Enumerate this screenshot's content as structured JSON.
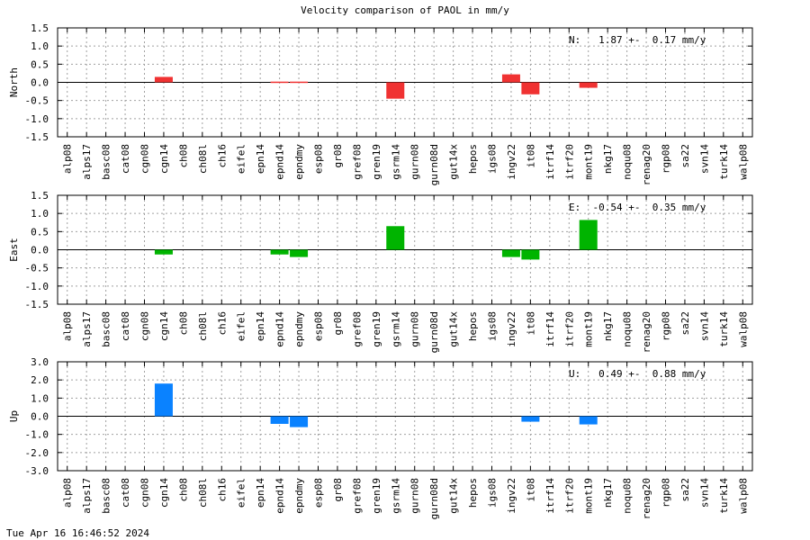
{
  "title": "Velocity comparison of PAOL in mm/y",
  "footer": "Tue Apr 16 16:46:52 2024",
  "chart_data": [
    {
      "type": "bar",
      "ylabel": "North",
      "annotation": "N:   1.87 +-  0.17 mm/y",
      "color": "#f03232",
      "ylim": [
        -1.5,
        1.5
      ],
      "yticks": [
        1.5,
        1.0,
        0.5,
        0.0,
        -0.5,
        -1.0,
        -1.5
      ],
      "ytick_labels": [
        "1.5",
        "1.0",
        "0.5",
        "0.0",
        "-0.5",
        "-1.0",
        "-1.5"
      ],
      "grid": true,
      "categories": [
        "alp08",
        "alps17",
        "basc08",
        "cat08",
        "cgn08",
        "cgn14",
        "ch08",
        "ch08l",
        "ch16",
        "eifel",
        "epn14",
        "epnd14",
        "epndmy",
        "esp08",
        "gr08",
        "gref08",
        "gren19",
        "gsrm14",
        "gurn08",
        "gurn08d",
        "gut14x",
        "hepos",
        "igs08",
        "ingv22",
        "it08",
        "itrf14",
        "itrf20",
        "mont19",
        "nkg17",
        "noqu08",
        "renag20",
        "rgp08",
        "sa22",
        "svn14",
        "turk14",
        "walp08"
      ],
      "values": [
        null,
        null,
        null,
        null,
        null,
        0.15,
        null,
        null,
        null,
        null,
        null,
        0.02,
        0.02,
        null,
        null,
        null,
        null,
        -0.45,
        null,
        null,
        null,
        null,
        null,
        0.22,
        -0.33,
        null,
        null,
        -0.15,
        null,
        null,
        null,
        null,
        null,
        null,
        null,
        null
      ]
    },
    {
      "type": "bar",
      "ylabel": "East",
      "annotation": "E:  -0.54 +-  0.35 mm/y",
      "color": "#00b400",
      "ylim": [
        -1.5,
        1.5
      ],
      "yticks": [
        1.5,
        1.0,
        0.5,
        0.0,
        -0.5,
        -1.0,
        -1.5
      ],
      "ytick_labels": [
        "1.5",
        "1.0",
        "0.5",
        "0.0",
        "-0.5",
        "-1.0",
        "-1.5"
      ],
      "grid": true,
      "categories": [
        "alp08",
        "alps17",
        "basc08",
        "cat08",
        "cgn08",
        "cgn14",
        "ch08",
        "ch08l",
        "ch16",
        "eifel",
        "epn14",
        "epnd14",
        "epndmy",
        "esp08",
        "gr08",
        "gref08",
        "gren19",
        "gsrm14",
        "gurn08",
        "gurn08d",
        "gut14x",
        "hepos",
        "igs08",
        "ingv22",
        "it08",
        "itrf14",
        "itrf20",
        "mont19",
        "nkg17",
        "noqu08",
        "renag20",
        "rgp08",
        "sa22",
        "svn14",
        "turk14",
        "walp08"
      ],
      "values": [
        null,
        null,
        null,
        null,
        null,
        -0.13,
        null,
        null,
        null,
        null,
        null,
        -0.13,
        -0.2,
        null,
        null,
        null,
        null,
        0.65,
        null,
        null,
        null,
        null,
        null,
        -0.2,
        -0.27,
        null,
        null,
        0.82,
        null,
        null,
        null,
        null,
        null,
        null,
        null,
        null
      ]
    },
    {
      "type": "bar",
      "ylabel": "Up",
      "annotation": "U:   0.49 +-  0.88 mm/y",
      "color": "#0a82ff",
      "ylim": [
        -3.0,
        3.0
      ],
      "yticks": [
        3.0,
        2.0,
        1.0,
        0.0,
        -1.0,
        -2.0,
        -3.0
      ],
      "ytick_labels": [
        "3.0",
        "2.0",
        "1.0",
        "0.0",
        "-1.0",
        "-2.0",
        "-3.0"
      ],
      "grid": true,
      "categories": [
        "alp08",
        "alps17",
        "basc08",
        "cat08",
        "cgn08",
        "cgn14",
        "ch08",
        "ch08l",
        "ch16",
        "eifel",
        "epn14",
        "epnd14",
        "epndmy",
        "esp08",
        "gr08",
        "gref08",
        "gren19",
        "gsrm14",
        "gurn08",
        "gurn08d",
        "gut14x",
        "hepos",
        "igs08",
        "ingv22",
        "it08",
        "itrf14",
        "itrf20",
        "mont19",
        "nkg17",
        "noqu08",
        "renag20",
        "rgp08",
        "sa22",
        "svn14",
        "turk14",
        "walp08"
      ],
      "values": [
        null,
        null,
        null,
        null,
        null,
        1.8,
        null,
        null,
        null,
        null,
        null,
        -0.42,
        -0.6,
        null,
        null,
        null,
        null,
        null,
        null,
        null,
        null,
        null,
        null,
        null,
        -0.3,
        null,
        null,
        -0.45,
        null,
        null,
        null,
        null,
        null,
        null,
        null,
        null
      ]
    }
  ]
}
